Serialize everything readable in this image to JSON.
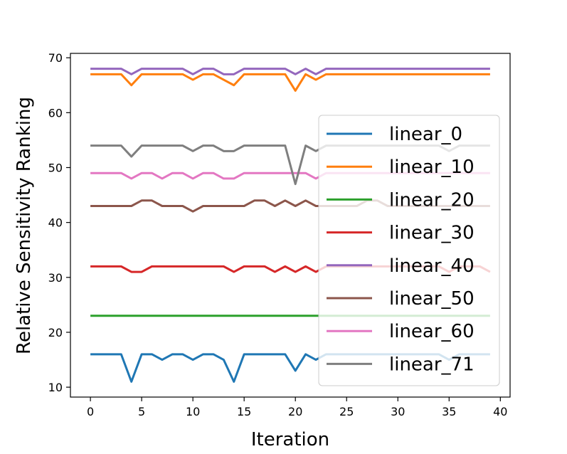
{
  "chart_data": {
    "type": "line",
    "title": "",
    "xlabel": "Iteration",
    "ylabel": "Relative Sensitivity Ranking",
    "xlim": [
      -1.95,
      40.95
    ],
    "ylim": [
      8.2,
      70.8
    ],
    "xticks": [
      0,
      5,
      10,
      15,
      20,
      25,
      30,
      35,
      40
    ],
    "yticks": [
      10,
      20,
      30,
      40,
      50,
      60,
      70
    ],
    "grid": false,
    "legend_position": "right",
    "x": [
      0,
      1,
      2,
      3,
      4,
      5,
      6,
      7,
      8,
      9,
      10,
      11,
      12,
      13,
      14,
      15,
      16,
      17,
      18,
      19,
      20,
      21,
      22,
      23,
      24,
      25,
      26,
      27,
      28,
      29,
      30,
      31,
      32,
      33,
      34,
      35,
      36,
      37,
      38,
      39
    ],
    "series": [
      {
        "name": "linear_0",
        "color": "#1f77b4",
        "values": [
          16,
          16,
          16,
          16,
          11,
          16,
          16,
          15,
          16,
          16,
          15,
          16,
          16,
          15,
          11,
          16,
          16,
          16,
          16,
          16,
          13,
          16,
          15,
          16,
          16,
          16,
          16,
          16,
          16,
          16,
          16,
          16,
          16,
          16,
          16,
          15,
          16,
          16,
          16,
          16
        ]
      },
      {
        "name": "linear_10",
        "color": "#ff7f0e",
        "values": [
          67,
          67,
          67,
          67,
          65,
          67,
          67,
          67,
          67,
          67,
          66,
          67,
          67,
          66,
          65,
          67,
          67,
          67,
          67,
          67,
          64,
          67,
          66,
          67,
          67,
          67,
          67,
          67,
          67,
          67,
          67,
          67,
          67,
          67,
          67,
          67,
          67,
          67,
          67,
          67
        ]
      },
      {
        "name": "linear_20",
        "color": "#2ca02c",
        "values": [
          23,
          23,
          23,
          23,
          23,
          23,
          23,
          23,
          23,
          23,
          23,
          23,
          23,
          23,
          23,
          23,
          23,
          23,
          23,
          23,
          23,
          23,
          23,
          23,
          23,
          23,
          23,
          23,
          23,
          23,
          23,
          23,
          23,
          23,
          23,
          23,
          23,
          23,
          23,
          23
        ]
      },
      {
        "name": "linear_30",
        "color": "#d62728",
        "values": [
          32,
          32,
          32,
          32,
          31,
          31,
          32,
          32,
          32,
          32,
          32,
          32,
          32,
          32,
          31,
          32,
          32,
          32,
          31,
          32,
          31,
          32,
          31,
          32,
          32,
          32,
          32,
          32,
          32,
          32,
          32,
          32,
          32,
          32,
          32,
          31,
          32,
          32,
          32,
          31
        ]
      },
      {
        "name": "linear_40",
        "color": "#9467bd",
        "values": [
          68,
          68,
          68,
          68,
          67,
          68,
          68,
          68,
          68,
          68,
          67,
          68,
          68,
          67,
          67,
          68,
          68,
          68,
          68,
          68,
          67,
          68,
          67,
          68,
          68,
          68,
          68,
          68,
          68,
          68,
          68,
          68,
          68,
          68,
          68,
          68,
          68,
          68,
          68,
          68
        ]
      },
      {
        "name": "linear_50",
        "color": "#8c564b",
        "values": [
          43,
          43,
          43,
          43,
          43,
          44,
          44,
          43,
          43,
          43,
          42,
          43,
          43,
          43,
          43,
          43,
          44,
          44,
          43,
          44,
          43,
          44,
          43,
          43,
          43,
          43,
          43,
          44,
          44,
          43,
          43,
          43,
          43,
          43,
          43,
          43,
          43,
          43,
          43,
          43
        ]
      },
      {
        "name": "linear_60",
        "color": "#e377c2",
        "values": [
          49,
          49,
          49,
          49,
          48,
          49,
          49,
          48,
          49,
          49,
          48,
          49,
          49,
          48,
          48,
          49,
          49,
          49,
          49,
          49,
          49,
          49,
          48,
          49,
          49,
          49,
          49,
          49,
          49,
          49,
          49,
          49,
          49,
          49,
          49,
          49,
          49,
          49,
          49,
          49
        ]
      },
      {
        "name": "linear_71",
        "color": "#7f7f7f",
        "values": [
          54,
          54,
          54,
          54,
          52,
          54,
          54,
          54,
          54,
          54,
          53,
          54,
          54,
          53,
          53,
          54,
          54,
          54,
          54,
          54,
          47,
          54,
          53,
          54,
          54,
          54,
          54,
          54,
          54,
          54,
          54,
          54,
          54,
          54,
          54,
          53,
          54,
          54,
          54,
          54
        ]
      }
    ]
  }
}
